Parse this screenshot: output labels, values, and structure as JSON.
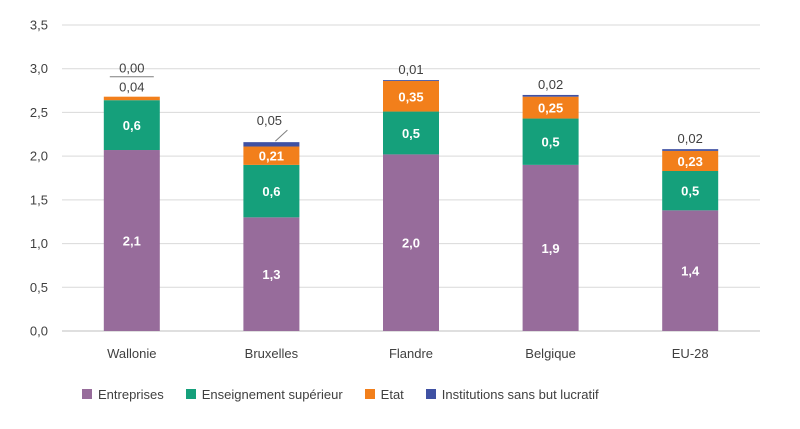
{
  "chart_data": {
    "type": "bar",
    "stacked": true,
    "categories": [
      "Wallonie",
      "Bruxelles",
      "Flandre",
      "Belgique",
      "EU-28"
    ],
    "ylim": [
      0,
      3.5
    ],
    "yticks": [
      "0,0",
      "0,5",
      "1,0",
      "1,5",
      "2,0",
      "2,5",
      "3,0",
      "3,5"
    ],
    "grid": true,
    "legend_position": "bottom",
    "series": [
      {
        "name": "Entreprises",
        "color": "#976c9b",
        "values": [
          2.07,
          1.3,
          2.02,
          1.9,
          1.38
        ],
        "labels": [
          "2,1",
          "1,3",
          "2,0",
          "1,9",
          "1,4"
        ]
      },
      {
        "name": "Enseignement supérieur",
        "color": "#15a07b",
        "values": [
          0.57,
          0.6,
          0.49,
          0.53,
          0.45
        ],
        "labels": [
          "0,6",
          "0,6",
          "0,5",
          "0,5",
          "0,5"
        ]
      },
      {
        "name": "Etat",
        "color": "#f27f1b",
        "values": [
          0.04,
          0.21,
          0.35,
          0.25,
          0.23
        ],
        "labels": [
          "0,04",
          "0,21",
          "0,35",
          "0,25",
          "0,23"
        ]
      },
      {
        "name": "Institutions sans but lucratif",
        "color": "#3f51a3",
        "values": [
          0.0,
          0.05,
          0.01,
          0.02,
          0.02
        ],
        "labels": [
          "0,00",
          "0,05",
          "0,01",
          "0,02",
          "0,02"
        ]
      }
    ]
  }
}
